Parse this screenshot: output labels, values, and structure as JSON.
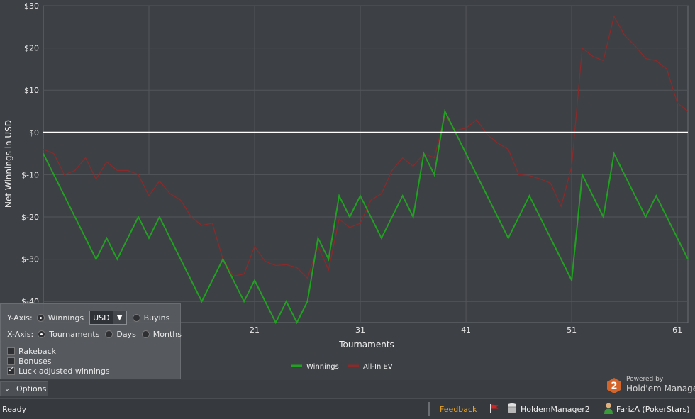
{
  "chart_data": {
    "type": "line",
    "xlabel": "Tournaments",
    "ylabel": "Net Winnings in USD",
    "xlim": [
      1,
      62
    ],
    "ylim": [
      -45,
      30
    ],
    "x_ticks": [
      21,
      31,
      41,
      51,
      61
    ],
    "y_ticks": [
      {
        "value": 30,
        "label": "$30"
      },
      {
        "value": 20,
        "label": "$20"
      },
      {
        "value": 10,
        "label": "$10"
      },
      {
        "value": 0,
        "label": "$0"
      },
      {
        "value": -10,
        "label": "$-10"
      },
      {
        "value": -20,
        "label": "$-20"
      },
      {
        "value": -30,
        "label": "$-30"
      },
      {
        "value": -40,
        "label": "$-40"
      }
    ],
    "grid": true,
    "zero_line": true,
    "legend_position": "bottom-center",
    "series": [
      {
        "name": "Winnings",
        "color": "#22a022",
        "x": [
          1,
          6,
          7,
          8,
          10,
          11,
          12,
          14,
          16,
          18,
          20,
          21,
          23,
          24,
          25,
          26,
          27,
          28,
          29,
          30,
          31,
          33,
          35,
          36,
          37,
          38,
          39,
          43,
          45,
          47,
          50,
          51,
          52,
          53,
          54,
          55,
          56,
          58,
          59,
          60,
          62
        ],
        "values": [
          -5,
          -30,
          -25,
          -30,
          -20,
          -25,
          -20,
          -30,
          -40,
          -30,
          -40,
          -35,
          -45,
          -40,
          -45,
          -40,
          -25,
          -30,
          -15,
          -20,
          -15,
          -25,
          -15,
          -20,
          -5,
          -10,
          5,
          -15,
          -25,
          -15,
          -30,
          -35,
          -10,
          -15,
          -20,
          -5,
          -10,
          -20,
          -15,
          -20,
          -30
        ]
      },
      {
        "name": "All-In EV",
        "color": "#8b2a2a",
        "x": [
          1,
          2,
          3,
          4,
          5,
          6,
          7,
          8,
          9,
          10,
          11,
          12,
          13,
          14,
          15,
          16,
          17,
          18,
          19,
          20,
          21,
          22,
          23,
          24,
          25,
          26,
          27,
          28,
          29,
          30,
          31,
          32,
          33,
          34,
          35,
          36,
          37,
          38,
          39,
          40,
          41,
          42,
          43,
          44,
          45,
          46,
          47,
          48,
          49,
          50,
          51,
          52,
          53,
          54,
          55,
          56,
          57,
          58,
          59,
          60,
          61,
          62
        ],
        "values": [
          -4,
          -5,
          -10,
          -9,
          -6,
          -11,
          -7,
          -9,
          -9,
          -10,
          -15,
          -11.5,
          -14.5,
          -16,
          -20,
          -22,
          -21.5,
          -30,
          -34,
          -33.5,
          -27,
          -30.5,
          -31.5,
          -31.3,
          -32,
          -34.5,
          -27,
          -32.5,
          -20.5,
          -22.5,
          -21.5,
          -16,
          -14.5,
          -9,
          -6,
          -8,
          -5,
          -6,
          4,
          0.5,
          1,
          3,
          -0.5,
          -2.5,
          -4,
          -10,
          -10.2,
          -11,
          -12,
          -17.5,
          -8,
          20,
          18,
          17,
          27.5,
          23,
          20.5,
          17.5,
          17,
          15,
          7,
          5
        ]
      }
    ]
  },
  "options": {
    "y_axis_label": "Y-Axis:",
    "y_opt_winnings": "Winnings",
    "currency": "USD",
    "y_opt_buyins": "Buyins",
    "x_axis_label": "X-Axis:",
    "x_opt_tournaments": "Tournaments",
    "x_opt_days": "Days",
    "x_opt_months": "Months",
    "chk_rakeback": "Rakeback",
    "chk_bonuses": "Bonuses",
    "chk_luck": "Luck adjusted winnings",
    "toggle_label": "Options"
  },
  "brand": {
    "powered_by": "Powered by",
    "name": "Hold'em Manager",
    "logo_text": "2",
    "logo_color": "#d4652a"
  },
  "status": {
    "text": "Ready",
    "feedback": "Feedback",
    "database": "HoldemManager2",
    "player": "FarizA (PokerStars)"
  },
  "colors": {
    "plot_bg": "#3d4044",
    "grid": "#53575c",
    "zero_line": "#ffffff",
    "feedback": "#e8a426"
  }
}
